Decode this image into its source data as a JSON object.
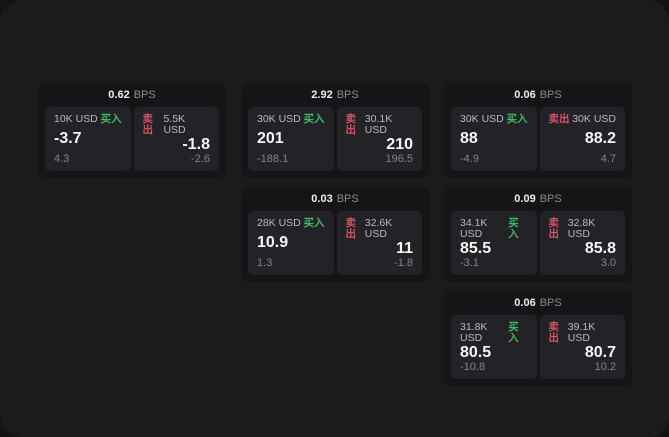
{
  "colors": {
    "buy": "#3eb863",
    "sell": "#d15265",
    "app_background": "#1b1b1d",
    "card_background": "#151517",
    "panel_background": "#232327"
  },
  "cards": [
    {
      "col": 1,
      "row": 1,
      "bps": "0.62",
      "unit": "BPS",
      "buy": {
        "amount": "10K USD",
        "label": "买入",
        "price": "-3.7",
        "change": "4.3"
      },
      "sell": {
        "label": "卖出",
        "amount": "5.5K USD",
        "price": "-1.8",
        "change": "-2.6"
      }
    },
    {
      "col": 2,
      "row": 1,
      "bps": "2.92",
      "unit": "BPS",
      "buy": {
        "amount": "30K USD",
        "label": "买入",
        "price": "201",
        "change": "-188.1"
      },
      "sell": {
        "label": "卖出",
        "amount": "30.1K USD",
        "price": "210",
        "change": "196.5"
      }
    },
    {
      "col": 3,
      "row": 1,
      "bps": "0.06",
      "unit": "BPS",
      "buy": {
        "amount": "30K USD",
        "label": "买入",
        "price": "88",
        "change": "-4.9"
      },
      "sell": {
        "label": "卖出",
        "amount": "30K USD",
        "price": "88.2",
        "change": "4.7"
      }
    },
    {
      "col": 2,
      "row": 2,
      "bps": "0.03",
      "unit": "BPS",
      "buy": {
        "amount": "28K USD",
        "label": "买入",
        "price": "10.9",
        "change": "1.3"
      },
      "sell": {
        "label": "卖出",
        "amount": "32.6K USD",
        "price": "11",
        "change": "-1.8"
      }
    },
    {
      "col": 3,
      "row": 2,
      "bps": "0.09",
      "unit": "BPS",
      "buy": {
        "amount": "34.1K USD",
        "label": "买入",
        "price": "85.5",
        "change": "-3.1"
      },
      "sell": {
        "label": "卖出",
        "amount": "32.8K USD",
        "price": "85.8",
        "change": "3.0"
      }
    },
    {
      "col": 3,
      "row": 3,
      "bps": "0.06",
      "unit": "BPS",
      "buy": {
        "amount": "31.8K USD",
        "label": "买入",
        "price": "80.5",
        "change": "-10.8"
      },
      "sell": {
        "label": "卖出",
        "amount": "39.1K USD",
        "price": "80.7",
        "change": "10.2"
      }
    }
  ]
}
